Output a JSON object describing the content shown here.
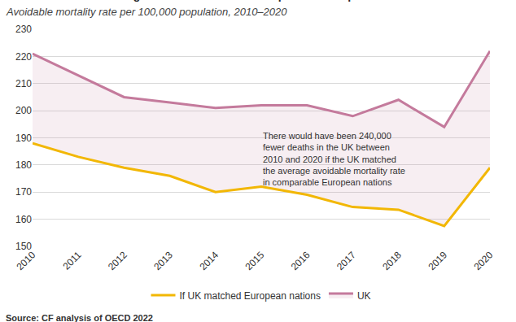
{
  "chart_data": {
    "type": "line",
    "title": "Avoidable deaths are higher in the UK than in comparable European countries",
    "subtitle": "Avoidable mortality rate per 100,000 population, 2010–2020",
    "source": "Source: CF analysis of OECD 2022",
    "annotations": [
      "There would have been 240,000\nfewer deaths in the UK between\n2010 and 2020 if the UK matched\nthe average avoidable mortality rate\nin comparable European nations"
    ],
    "x": [
      2010,
      2011,
      2012,
      2013,
      2014,
      2015,
      2016,
      2017,
      2018,
      2019,
      2020
    ],
    "series": [
      {
        "name": "UK",
        "color": "#c47a9c",
        "values": [
          221,
          213,
          205,
          203,
          201,
          202,
          202,
          198,
          204,
          194,
          222
        ]
      },
      {
        "name": "If UK matched European nations",
        "color": "#f2b705",
        "values": [
          188,
          183,
          179,
          176,
          170,
          172,
          169,
          164.5,
          163.5,
          157.5,
          179
        ]
      }
    ],
    "xlim": [
      2010,
      2020
    ],
    "xticks": [
      2010,
      2011,
      2012,
      2013,
      2014,
      2015,
      2016,
      2017,
      2018,
      2019,
      2020
    ],
    "ylim": [
      150,
      230
    ],
    "yticks": [
      150,
      160,
      170,
      180,
      190,
      200,
      210,
      220,
      230
    ],
    "grid": true,
    "legend": "bottom"
  }
}
